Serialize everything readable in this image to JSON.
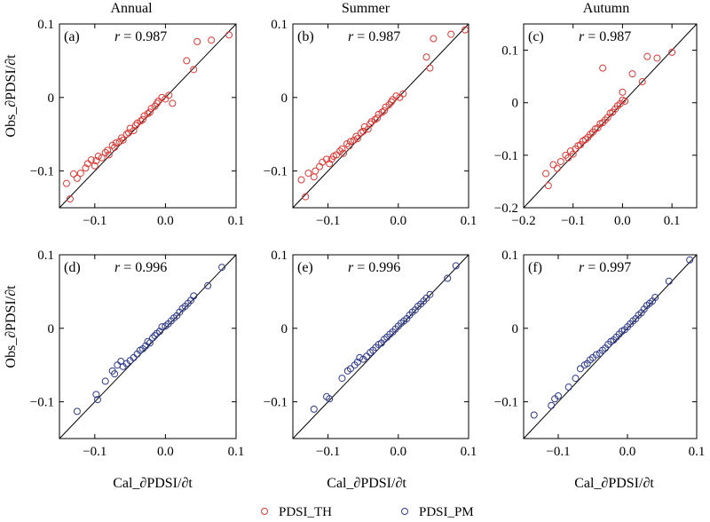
{
  "columns": [
    "Annual",
    "Summer",
    "Autumn"
  ],
  "ylabel": "Obs_∂PDSI/∂t",
  "xlabel": "Cal_∂PDSI/∂t",
  "legend": [
    {
      "name": "PDSI_TH",
      "color": "#d93a35"
    },
    {
      "name": "PDSI_PM",
      "color": "#2f3b8c"
    }
  ],
  "chart_data": [
    {
      "type": "scatter",
      "panel": "(a)",
      "r_label": "r",
      "r_value": "= 0.987",
      "series": "PDSI_TH",
      "color": "#d93a35",
      "xlim": [
        -0.15,
        0.1
      ],
      "ylim": [
        -0.15,
        0.1
      ],
      "xticks": [
        -0.1,
        0.0,
        0.1
      ],
      "xtick_labels": [
        "−0.1",
        "0.0",
        "0.1"
      ],
      "yticks": [
        -0.1,
        0,
        0.1
      ],
      "ytick_labels": [
        "−0.1",
        "0",
        "0.1"
      ],
      "points": [
        [
          -0.14,
          -0.117
        ],
        [
          -0.135,
          -0.138
        ],
        [
          -0.13,
          -0.104
        ],
        [
          -0.125,
          -0.11
        ],
        [
          -0.12,
          -0.103
        ],
        [
          -0.113,
          -0.096
        ],
        [
          -0.11,
          -0.09
        ],
        [
          -0.105,
          -0.085
        ],
        [
          -0.1,
          -0.093
        ],
        [
          -0.098,
          -0.086
        ],
        [
          -0.095,
          -0.08
        ],
        [
          -0.09,
          -0.082
        ],
        [
          -0.085,
          -0.075
        ],
        [
          -0.082,
          -0.072
        ],
        [
          -0.08,
          -0.078
        ],
        [
          -0.075,
          -0.065
        ],
        [
          -0.072,
          -0.068
        ],
        [
          -0.07,
          -0.062
        ],
        [
          -0.065,
          -0.06
        ],
        [
          -0.062,
          -0.055
        ],
        [
          -0.06,
          -0.058
        ],
        [
          -0.055,
          -0.05
        ],
        [
          -0.052,
          -0.048
        ],
        [
          -0.05,
          -0.042
        ],
        [
          -0.045,
          -0.045
        ],
        [
          -0.042,
          -0.038
        ],
        [
          -0.04,
          -0.035
        ],
        [
          -0.035,
          -0.032
        ],
        [
          -0.032,
          -0.03
        ],
        [
          -0.03,
          -0.025
        ],
        [
          -0.025,
          -0.022
        ],
        [
          -0.022,
          -0.02
        ],
        [
          -0.02,
          -0.015
        ],
        [
          -0.015,
          -0.012
        ],
        [
          -0.012,
          -0.008
        ],
        [
          -0.01,
          -0.005
        ],
        [
          -0.005,
          0.0
        ],
        [
          0.0,
          -0.002
        ],
        [
          0.005,
          0.003
        ],
        [
          0.01,
          -0.008
        ],
        [
          0.03,
          0.05
        ],
        [
          0.04,
          0.038
        ],
        [
          0.045,
          0.076
        ],
        [
          0.065,
          0.078
        ],
        [
          0.09,
          0.085
        ]
      ]
    },
    {
      "type": "scatter",
      "panel": "(b)",
      "r_label": "r",
      "r_value": "= 0.987",
      "series": "PDSI_TH",
      "color": "#d93a35",
      "xlim": [
        -0.15,
        0.1
      ],
      "ylim": [
        -0.15,
        0.1
      ],
      "xticks": [
        -0.1,
        0.0,
        0.1
      ],
      "xtick_labels": [
        "−0.1",
        "0.0",
        "0.1"
      ],
      "yticks": [
        -0.1,
        0,
        0.1
      ],
      "ytick_labels": [
        "−0.1",
        "0",
        "0.1"
      ],
      "points": [
        [
          -0.138,
          -0.112
        ],
        [
          -0.132,
          -0.135
        ],
        [
          -0.128,
          -0.103
        ],
        [
          -0.12,
          -0.108
        ],
        [
          -0.118,
          -0.1
        ],
        [
          -0.112,
          -0.094
        ],
        [
          -0.108,
          -0.088
        ],
        [
          -0.102,
          -0.084
        ],
        [
          -0.098,
          -0.09
        ],
        [
          -0.095,
          -0.084
        ],
        [
          -0.092,
          -0.08
        ],
        [
          -0.088,
          -0.078
        ],
        [
          -0.083,
          -0.073
        ],
        [
          -0.08,
          -0.07
        ],
        [
          -0.078,
          -0.076
        ],
        [
          -0.073,
          -0.063
        ],
        [
          -0.07,
          -0.066
        ],
        [
          -0.068,
          -0.06
        ],
        [
          -0.063,
          -0.058
        ],
        [
          -0.06,
          -0.053
        ],
        [
          -0.058,
          -0.056
        ],
        [
          -0.053,
          -0.048
        ],
        [
          -0.05,
          -0.046
        ],
        [
          -0.048,
          -0.04
        ],
        [
          -0.043,
          -0.043
        ],
        [
          -0.04,
          -0.036
        ],
        [
          -0.038,
          -0.033
        ],
        [
          -0.033,
          -0.03
        ],
        [
          -0.03,
          -0.028
        ],
        [
          -0.028,
          -0.023
        ],
        [
          -0.023,
          -0.02
        ],
        [
          -0.02,
          -0.018
        ],
        [
          -0.018,
          -0.013
        ],
        [
          -0.013,
          -0.01
        ],
        [
          -0.01,
          -0.006
        ],
        [
          -0.008,
          -0.003
        ],
        [
          -0.003,
          0.002
        ],
        [
          0.002,
          0.0
        ],
        [
          0.007,
          0.005
        ],
        [
          0.04,
          0.055
        ],
        [
          0.045,
          0.04
        ],
        [
          0.05,
          0.08
        ],
        [
          0.075,
          0.086
        ],
        [
          0.095,
          0.092
        ]
      ]
    },
    {
      "type": "scatter",
      "panel": "(c)",
      "r_label": "r",
      "r_value": "= 0.987",
      "series": "PDSI_TH",
      "color": "#d93a35",
      "xlim": [
        -0.2,
        0.15
      ],
      "ylim": [
        -0.2,
        0.15
      ],
      "xticks": [
        -0.2,
        -0.1,
        0.0,
        0.1
      ],
      "xtick_labels": [
        "−0.2",
        "−0.1",
        "0.0",
        "0.1"
      ],
      "yticks": [
        -0.2,
        -0.1,
        0,
        0.1
      ],
      "ytick_labels": [
        "−0.2",
        "−0.1",
        "0",
        "0.1"
      ],
      "points": [
        [
          -0.155,
          -0.135
        ],
        [
          -0.15,
          -0.158
        ],
        [
          -0.14,
          -0.118
        ],
        [
          -0.132,
          -0.125
        ],
        [
          -0.125,
          -0.112
        ],
        [
          -0.115,
          -0.1
        ],
        [
          -0.11,
          -0.105
        ],
        [
          -0.105,
          -0.092
        ],
        [
          -0.1,
          -0.098
        ],
        [
          -0.095,
          -0.088
        ],
        [
          -0.09,
          -0.082
        ],
        [
          -0.085,
          -0.08
        ],
        [
          -0.08,
          -0.073
        ],
        [
          -0.075,
          -0.07
        ],
        [
          -0.07,
          -0.066
        ],
        [
          -0.065,
          -0.06
        ],
        [
          -0.06,
          -0.056
        ],
        [
          -0.055,
          -0.05
        ],
        [
          -0.05,
          -0.048
        ],
        [
          -0.045,
          -0.04
        ],
        [
          -0.04,
          -0.038
        ],
        [
          -0.035,
          -0.033
        ],
        [
          -0.03,
          -0.028
        ],
        [
          -0.025,
          -0.02
        ],
        [
          -0.02,
          -0.018
        ],
        [
          -0.015,
          -0.012
        ],
        [
          -0.01,
          -0.006
        ],
        [
          -0.005,
          -0.002
        ],
        [
          0.0,
          0.005
        ],
        [
          0.005,
          0.003
        ],
        [
          -0.04,
          0.066
        ],
        [
          0.0,
          0.02
        ],
        [
          0.02,
          0.055
        ],
        [
          0.04,
          0.04
        ],
        [
          0.05,
          0.088
        ],
        [
          0.07,
          0.085
        ],
        [
          0.1,
          0.096
        ]
      ]
    },
    {
      "type": "scatter",
      "panel": "(d)",
      "r_label": "r",
      "r_value": "= 0.996",
      "series": "PDSI_PM",
      "color": "#2f3b8c",
      "xlim": [
        -0.15,
        0.1
      ],
      "ylim": [
        -0.15,
        0.1
      ],
      "xticks": [
        -0.1,
        0.0,
        0.1
      ],
      "xtick_labels": [
        "−0.1",
        "0.0",
        "0.1"
      ],
      "yticks": [
        -0.1,
        0,
        0.1
      ],
      "ytick_labels": [
        "−0.1",
        "0",
        "0.1"
      ],
      "points": [
        [
          -0.125,
          -0.113
        ],
        [
          -0.098,
          -0.09
        ],
        [
          -0.096,
          -0.097
        ],
        [
          -0.085,
          -0.072
        ],
        [
          -0.075,
          -0.058
        ],
        [
          -0.072,
          -0.062
        ],
        [
          -0.068,
          -0.05
        ],
        [
          -0.063,
          -0.045
        ],
        [
          -0.06,
          -0.052
        ],
        [
          -0.055,
          -0.048
        ],
        [
          -0.05,
          -0.044
        ],
        [
          -0.045,
          -0.04
        ],
        [
          -0.04,
          -0.035
        ],
        [
          -0.036,
          -0.03
        ],
        [
          -0.032,
          -0.028
        ],
        [
          -0.028,
          -0.024
        ],
        [
          -0.025,
          -0.018
        ],
        [
          -0.022,
          -0.02
        ],
        [
          -0.018,
          -0.013
        ],
        [
          -0.015,
          -0.01
        ],
        [
          -0.012,
          -0.007
        ],
        [
          -0.008,
          -0.004
        ],
        [
          -0.005,
          0.002
        ],
        [
          0.0,
          0.003
        ],
        [
          0.004,
          0.006
        ],
        [
          0.008,
          0.01
        ],
        [
          0.012,
          0.014
        ],
        [
          0.016,
          0.017
        ],
        [
          0.02,
          0.022
        ],
        [
          0.024,
          0.027
        ],
        [
          0.028,
          0.03
        ],
        [
          0.032,
          0.034
        ],
        [
          0.036,
          0.038
        ],
        [
          0.04,
          0.044
        ],
        [
          0.06,
          0.058
        ],
        [
          0.08,
          0.083
        ]
      ]
    },
    {
      "type": "scatter",
      "panel": "(e)",
      "r_label": "r",
      "r_value": "= 0.996",
      "series": "PDSI_PM",
      "color": "#2f3b8c",
      "xlim": [
        -0.15,
        0.1
      ],
      "ylim": [
        -0.15,
        0.1
      ],
      "xticks": [
        -0.1,
        0.0,
        0.1
      ],
      "xtick_labels": [
        "−0.1",
        "0.0",
        "0.1"
      ],
      "yticks": [
        -0.1,
        0,
        0.1
      ],
      "ytick_labels": [
        "−0.1",
        "0",
        "0.1"
      ],
      "points": [
        [
          -0.12,
          -0.11
        ],
        [
          -0.102,
          -0.093
        ],
        [
          -0.098,
          -0.096
        ],
        [
          -0.08,
          -0.068
        ],
        [
          -0.072,
          -0.058
        ],
        [
          -0.068,
          -0.055
        ],
        [
          -0.062,
          -0.05
        ],
        [
          -0.058,
          -0.046
        ],
        [
          -0.055,
          -0.04
        ],
        [
          -0.05,
          -0.042
        ],
        [
          -0.045,
          -0.038
        ],
        [
          -0.04,
          -0.033
        ],
        [
          -0.036,
          -0.03
        ],
        [
          -0.032,
          -0.026
        ],
        [
          -0.028,
          -0.022
        ],
        [
          -0.024,
          -0.02
        ],
        [
          -0.02,
          -0.015
        ],
        [
          -0.016,
          -0.012
        ],
        [
          -0.012,
          -0.008
        ],
        [
          -0.008,
          -0.005
        ],
        [
          -0.004,
          -0.001
        ],
        [
          0.0,
          0.003
        ],
        [
          0.004,
          0.007
        ],
        [
          0.008,
          0.01
        ],
        [
          0.012,
          0.013
        ],
        [
          0.016,
          0.018
        ],
        [
          0.02,
          0.022
        ],
        [
          0.024,
          0.025
        ],
        [
          0.028,
          0.03
        ],
        [
          0.032,
          0.033
        ],
        [
          0.036,
          0.037
        ],
        [
          0.04,
          0.041
        ],
        [
          0.045,
          0.046
        ],
        [
          0.07,
          0.068
        ],
        [
          0.082,
          0.085
        ]
      ]
    },
    {
      "type": "scatter",
      "panel": "(f)",
      "r_label": "r",
      "r_value": "= 0.997",
      "series": "PDSI_PM",
      "color": "#2f3b8c",
      "xlim": [
        -0.15,
        0.1
      ],
      "ylim": [
        -0.15,
        0.1
      ],
      "xticks": [
        -0.1,
        0.0,
        0.1
      ],
      "xtick_labels": [
        "−0.1",
        "0.0",
        "0.1"
      ],
      "yticks": [
        -0.1,
        0,
        0.1
      ],
      "ytick_labels": [
        "−0.1",
        "0",
        "0.1"
      ],
      "points": [
        [
          -0.135,
          -0.118
        ],
        [
          -0.11,
          -0.105
        ],
        [
          -0.105,
          -0.096
        ],
        [
          -0.1,
          -0.092
        ],
        [
          -0.085,
          -0.08
        ],
        [
          -0.075,
          -0.068
        ],
        [
          -0.068,
          -0.055
        ],
        [
          -0.062,
          -0.05
        ],
        [
          -0.058,
          -0.048
        ],
        [
          -0.054,
          -0.043
        ],
        [
          -0.05,
          -0.04
        ],
        [
          -0.045,
          -0.036
        ],
        [
          -0.04,
          -0.034
        ],
        [
          -0.036,
          -0.03
        ],
        [
          -0.032,
          -0.027
        ],
        [
          -0.028,
          -0.022
        ],
        [
          -0.024,
          -0.018
        ],
        [
          -0.02,
          -0.016
        ],
        [
          -0.016,
          -0.012
        ],
        [
          -0.012,
          -0.008
        ],
        [
          -0.008,
          -0.004
        ],
        [
          -0.004,
          -0.002
        ],
        [
          0.0,
          0.002
        ],
        [
          0.004,
          0.006
        ],
        [
          0.008,
          0.01
        ],
        [
          0.012,
          0.013
        ],
        [
          0.016,
          0.018
        ],
        [
          0.02,
          0.021
        ],
        [
          0.024,
          0.026
        ],
        [
          0.028,
          0.031
        ],
        [
          0.032,
          0.034
        ],
        [
          0.036,
          0.037
        ],
        [
          0.04,
          0.042
        ],
        [
          0.06,
          0.064
        ],
        [
          0.09,
          0.093
        ]
      ]
    }
  ]
}
